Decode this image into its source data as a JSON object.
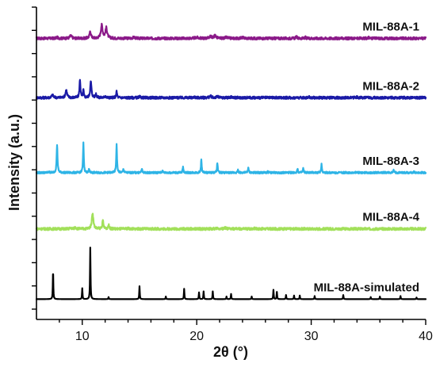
{
  "chart_data": {
    "type": "line",
    "xlabel": "2θ (°)",
    "ylabel": "Intensity (a.u.)",
    "xlim": [
      6,
      40
    ],
    "x_ticks": [
      10,
      20,
      30,
      40
    ],
    "y_ticks_visible": false,
    "legend": "inline-right",
    "series": [
      {
        "name": "MIL-88A-1",
        "color": "#8B1A89",
        "baseline": 0.9,
        "scale": 0.06,
        "noise": 0.004,
        "peaks": [
          [
            7.8,
            0.05,
            0.18
          ],
          [
            9.0,
            0.16,
            0.18
          ],
          [
            10.7,
            0.36,
            0.15
          ],
          [
            11.7,
            0.7,
            0.18
          ],
          [
            12.1,
            0.55,
            0.18
          ],
          [
            14.5,
            0.05,
            0.25
          ],
          [
            20.0,
            0.05,
            0.3
          ],
          [
            21.2,
            0.1,
            0.25
          ],
          [
            21.6,
            0.16,
            0.2
          ],
          [
            22.6,
            0.05,
            0.25
          ],
          [
            24.0,
            0.04,
            0.3
          ],
          [
            28.7,
            0.12,
            0.1
          ],
          [
            29.5,
            0.05,
            0.1
          ],
          [
            35.0,
            0.04,
            0.2
          ]
        ]
      },
      {
        "name": "MIL-88A-2",
        "color": "#1A1AA6",
        "baseline": 0.71,
        "scale": 0.06,
        "noise": 0.004,
        "peaks": [
          [
            7.4,
            0.14,
            0.18
          ],
          [
            8.6,
            0.4,
            0.16
          ],
          [
            9.8,
            0.95,
            0.1
          ],
          [
            10.1,
            0.4,
            0.08
          ],
          [
            10.75,
            0.85,
            0.13
          ],
          [
            11.2,
            0.2,
            0.12
          ],
          [
            12.0,
            0.1,
            0.12
          ],
          [
            13.0,
            0.32,
            0.1
          ],
          [
            15.0,
            0.05,
            0.15
          ],
          [
            19.8,
            0.06,
            0.1
          ],
          [
            21.2,
            0.08,
            0.2
          ],
          [
            21.8,
            0.06,
            0.2
          ],
          [
            23.0,
            0.04,
            0.2
          ],
          [
            29.8,
            0.06,
            0.1
          ],
          [
            34.0,
            0.03,
            0.2
          ]
        ]
      },
      {
        "name": "MIL-88A-3",
        "color": "#2EB4E6",
        "baseline": 0.47,
        "scale": 0.09,
        "noise": 0.003,
        "peaks": [
          [
            7.1,
            0.03,
            0.1
          ],
          [
            7.8,
            1.0,
            0.09
          ],
          [
            10.1,
            1.05,
            0.08
          ],
          [
            10.6,
            0.12,
            0.08
          ],
          [
            13.0,
            1.0,
            0.08
          ],
          [
            13.6,
            0.14,
            0.08
          ],
          [
            15.2,
            0.14,
            0.08
          ],
          [
            17.0,
            0.08,
            0.08
          ],
          [
            18.8,
            0.2,
            0.08
          ],
          [
            20.4,
            0.45,
            0.08
          ],
          [
            21.8,
            0.35,
            0.08
          ],
          [
            23.6,
            0.1,
            0.08
          ],
          [
            24.5,
            0.18,
            0.08
          ],
          [
            26.2,
            0.04,
            0.08
          ],
          [
            28.8,
            0.14,
            0.08
          ],
          [
            29.3,
            0.15,
            0.08
          ],
          [
            30.9,
            0.3,
            0.08
          ],
          [
            34.0,
            0.04,
            0.08
          ],
          [
            37.2,
            0.08,
            0.08
          ],
          [
            39.0,
            0.03,
            0.1
          ]
        ]
      },
      {
        "name": "MIL-88A-4",
        "color": "#A2E05A",
        "baseline": 0.29,
        "scale": 0.06,
        "noise": 0.004,
        "peaks": [
          [
            9.0,
            0.04,
            0.2
          ],
          [
            9.4,
            0.08,
            0.15
          ],
          [
            10.9,
            0.85,
            0.16
          ],
          [
            11.8,
            0.42,
            0.12
          ],
          [
            12.3,
            0.2,
            0.12
          ],
          [
            14.0,
            0.03,
            0.2
          ],
          [
            21.8,
            0.04,
            0.2
          ],
          [
            22.5,
            0.05,
            0.2
          ],
          [
            25.0,
            0.03,
            0.3
          ]
        ]
      },
      {
        "name": "MIL-88A-simulated",
        "color": "#000000",
        "baseline": 0.065,
        "scale": 0.165,
        "noise": 0,
        "peaks": [
          [
            7.45,
            0.56,
            0.05
          ],
          [
            10.0,
            0.21,
            0.05
          ],
          [
            10.7,
            1.0,
            0.05
          ],
          [
            12.3,
            0.04,
            0.05
          ],
          [
            15.0,
            0.25,
            0.05
          ],
          [
            17.3,
            0.05,
            0.05
          ],
          [
            18.9,
            0.2,
            0.05
          ],
          [
            20.2,
            0.13,
            0.05
          ],
          [
            20.6,
            0.15,
            0.05
          ],
          [
            21.4,
            0.15,
            0.05
          ],
          [
            22.6,
            0.05,
            0.05
          ],
          [
            23.0,
            0.1,
            0.05
          ],
          [
            24.8,
            0.05,
            0.05
          ],
          [
            26.7,
            0.18,
            0.05
          ],
          [
            27.0,
            0.14,
            0.05
          ],
          [
            27.8,
            0.08,
            0.05
          ],
          [
            28.5,
            0.07,
            0.05
          ],
          [
            29.0,
            0.07,
            0.05
          ],
          [
            30.3,
            0.06,
            0.05
          ],
          [
            32.8,
            0.08,
            0.05
          ],
          [
            35.2,
            0.04,
            0.05
          ],
          [
            36.0,
            0.05,
            0.05
          ],
          [
            37.8,
            0.06,
            0.05
          ],
          [
            39.2,
            0.03,
            0.05
          ]
        ]
      }
    ]
  }
}
